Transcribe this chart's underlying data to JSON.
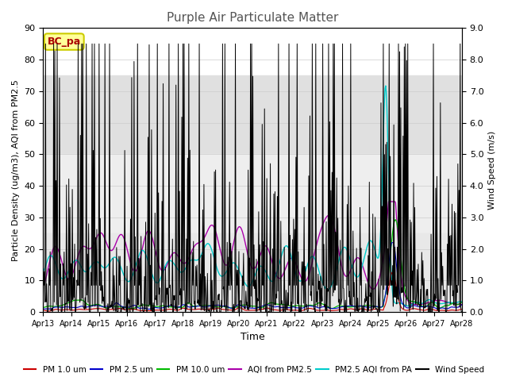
{
  "title": "Purple Air Particulate Matter",
  "xlabel": "Time",
  "ylabel_left": "Particle Density (ug/m3), AQI from PM2.5",
  "ylabel_right": "Wind Speed (m/s)",
  "ylim_left": [
    0,
    90
  ],
  "ylim_right": [
    0,
    9.0
  ],
  "yticks_left": [
    0,
    10,
    20,
    30,
    40,
    50,
    60,
    70,
    80,
    90
  ],
  "yticks_right": [
    0.0,
    1.0,
    2.0,
    3.0,
    4.0,
    5.0,
    6.0,
    7.0,
    8.0,
    9.0
  ],
  "xtick_labels": [
    "Apr 13",
    "Apr 14",
    "Apr 15",
    "Apr 16",
    "Apr 17",
    "Apr 18",
    "Apr 19",
    "Apr 20",
    "Apr 21",
    "Apr 22",
    "Apr 23",
    "Apr 24",
    "Apr 25",
    "Apr 26",
    "Apr 27",
    "Apr 28"
  ],
  "annotation_text": "BC_pa",
  "annotation_color": "#aa0000",
  "annotation_bg": "#ffff99",
  "annotation_border": "#cccc00",
  "bg_white": [
    75,
    90
  ],
  "bg_light": [
    50,
    75
  ],
  "bg_medium": [
    25,
    50
  ],
  "bg_dark": [
    0,
    25
  ],
  "bg_white_color": "#ffffff",
  "bg_light_color": "#e8e8e8",
  "bg_medium_color": "#d8d8d8",
  "bg_dark_color": "#ececec",
  "legend_items": [
    {
      "label": "PM 1.0 um",
      "color": "#cc0000"
    },
    {
      "label": "PM 2.5 um",
      "color": "#0000cc"
    },
    {
      "label": "PM 10.0 um",
      "color": "#00bb00"
    },
    {
      "label": "AQI from PM2.5",
      "color": "#aa00aa"
    },
    {
      "label": "PM2.5 AQI from PA",
      "color": "#00cccc"
    },
    {
      "label": "Wind Speed",
      "color": "#000000"
    }
  ],
  "n_points": 720,
  "title_color": "#555555",
  "title_fontsize": 11
}
